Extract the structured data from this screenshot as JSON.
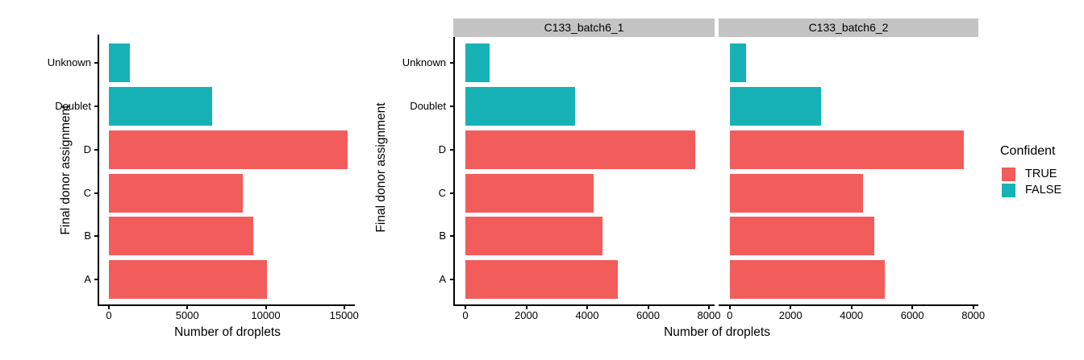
{
  "palette": {
    "true_color": "#F25C5A",
    "false_color": "#17B2B5",
    "strip_bg": "#C4C4C4",
    "axis_color": "#000000",
    "text_color": "#000000"
  },
  "legend": {
    "title": "Confident",
    "items": [
      {
        "label": "TRUE",
        "value": "true"
      },
      {
        "label": "FALSE",
        "value": "false"
      }
    ]
  },
  "chart_data": [
    {
      "type": "bar",
      "orientation": "horizontal",
      "panel": "combined",
      "title": "",
      "categories": [
        "Unknown",
        "Doublet",
        "D",
        "C",
        "B",
        "A"
      ],
      "values": [
        1350,
        6600,
        15200,
        8550,
        9200,
        10100
      ],
      "confident": [
        false,
        false,
        true,
        true,
        true,
        true
      ],
      "xlabel": "Number of droplets",
      "ylabel": "Final donor assignment",
      "xlim": [
        0,
        16400
      ],
      "xticks": [
        0,
        5000,
        10000,
        15000
      ],
      "grid": false,
      "legend_position": "none"
    },
    {
      "type": "bar",
      "orientation": "horizontal",
      "faceted": true,
      "categories": [
        "Unknown",
        "Doublet",
        "D",
        "C",
        "B",
        "A"
      ],
      "series": [
        {
          "name": "C133_batch6_1",
          "values": [
            800,
            3600,
            7550,
            4200,
            4500,
            5000
          ]
        },
        {
          "name": "C133_batch6_2",
          "values": [
            550,
            3000,
            7700,
            4380,
            4750,
            5100
          ]
        }
      ],
      "confident": [
        false,
        false,
        true,
        true,
        true,
        true
      ],
      "xlabel": "Number of droplets",
      "ylabel": "Final donor assignment",
      "xlim": [
        0,
        8400
      ],
      "xticks": [
        0,
        2000,
        4000,
        6000,
        8000
      ],
      "grid": false,
      "legend_position": "right",
      "legend_title": "Confident",
      "legend_entries": [
        "TRUE",
        "FALSE"
      ]
    }
  ]
}
